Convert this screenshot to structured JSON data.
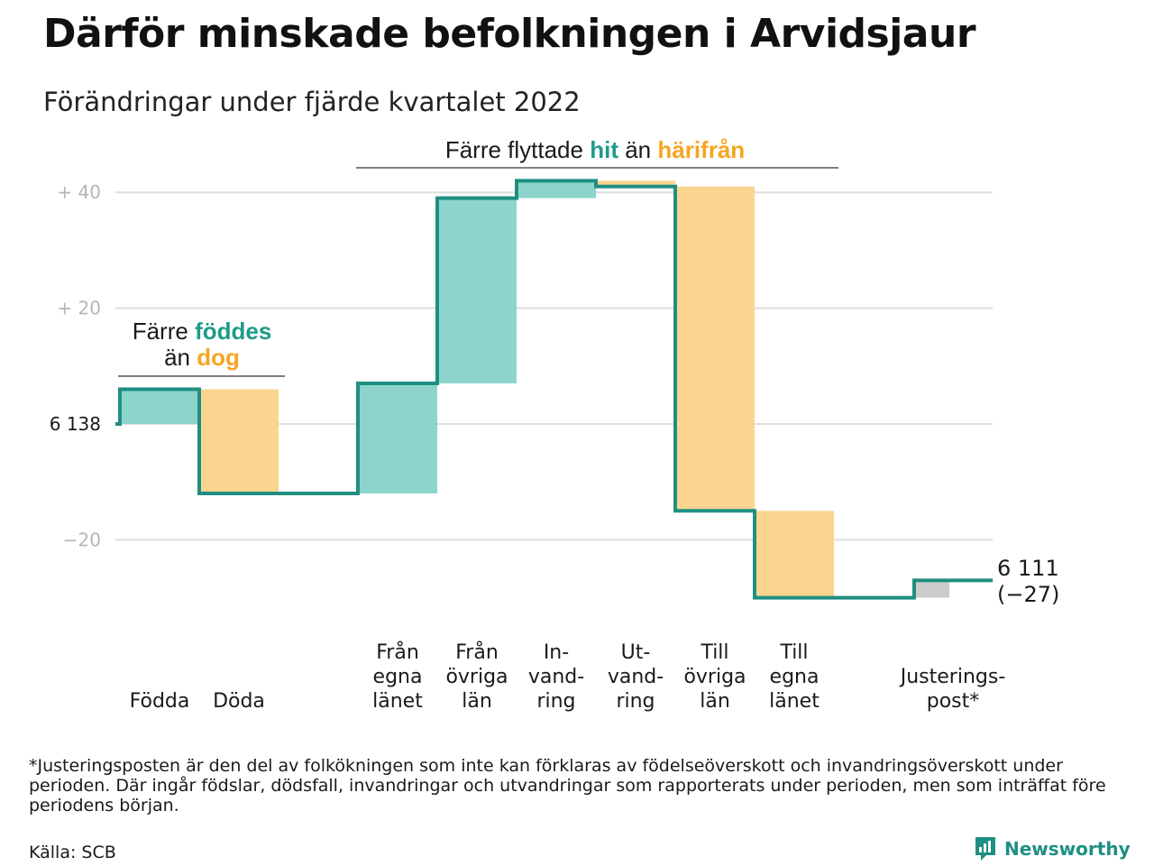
{
  "header": {
    "title": "Därför minskade befolkningen i Arvidsjaur",
    "subtitle": "Förändringar under fjärde kvartalet 2022"
  },
  "colors": {
    "increase": "#8dd5cc",
    "decrease": "#fad58f",
    "adjustment": "#cccccc",
    "line": "#1f8f82",
    "accent_green": "#1f9a8a",
    "accent_orange": "#f5a623",
    "grid": "#dddddd"
  },
  "annotations": {
    "births": {
      "line1": "Färre",
      "green_word": "föddes",
      "line2": "än",
      "orange_word": "dog"
    },
    "migration": {
      "prefix": "Färre flyttade",
      "green_word": "hit",
      "middle": "än",
      "orange_word": "härifrån"
    }
  },
  "chart_data": {
    "type": "waterfall",
    "start_value": 6138,
    "start_label": "6 138",
    "end_value": 6111,
    "end_label": "6 111",
    "end_change_label": "(−27)",
    "y_ticks": [
      {
        "value": 40,
        "label": "+ 40"
      },
      {
        "value": 20,
        "label": "+ 20"
      },
      {
        "value": 0,
        "label": "6 138"
      },
      {
        "value": -20,
        "label": "−20"
      }
    ],
    "ylim": [
      -32,
      44
    ],
    "steps": [
      {
        "label": [
          "Födda"
        ],
        "change": 6,
        "kind": "increase"
      },
      {
        "label": [
          "Döda"
        ],
        "change": -18,
        "kind": "decrease"
      },
      {
        "label": [],
        "change": 0,
        "kind": "gap"
      },
      {
        "label": [
          "Från",
          "egna",
          "länet"
        ],
        "change": 19,
        "kind": "increase"
      },
      {
        "label": [
          "Från",
          "övriga",
          "län"
        ],
        "change": 32,
        "kind": "increase"
      },
      {
        "label": [
          "In-",
          "vand-",
          "ring"
        ],
        "change": 3,
        "kind": "increase"
      },
      {
        "label": [
          "Ut-",
          "vand-",
          "ring"
        ],
        "change": -1,
        "kind": "decrease"
      },
      {
        "label": [
          "Till",
          "övriga",
          "län"
        ],
        "change": -56,
        "kind": "decrease"
      },
      {
        "label": [
          "Till",
          "egna",
          "länet"
        ],
        "change": -15,
        "kind": "decrease"
      },
      {
        "label": [],
        "change": 0,
        "kind": "gap"
      },
      {
        "label": [
          "Justerings-",
          "post*"
        ],
        "change": 3,
        "kind": "adjustment"
      }
    ]
  },
  "footer": {
    "note": "*Justeringsposten är den del av folkökningen som inte kan förklaras av födelseöverskott och invandringsöverskott under perioden. Där ingår födslar, dödsfall, invandringar och utvandringar som rapporterats under perioden, men som inträffat före periodens början.",
    "source": "Källa: SCB",
    "brand": "Newsworthy"
  }
}
